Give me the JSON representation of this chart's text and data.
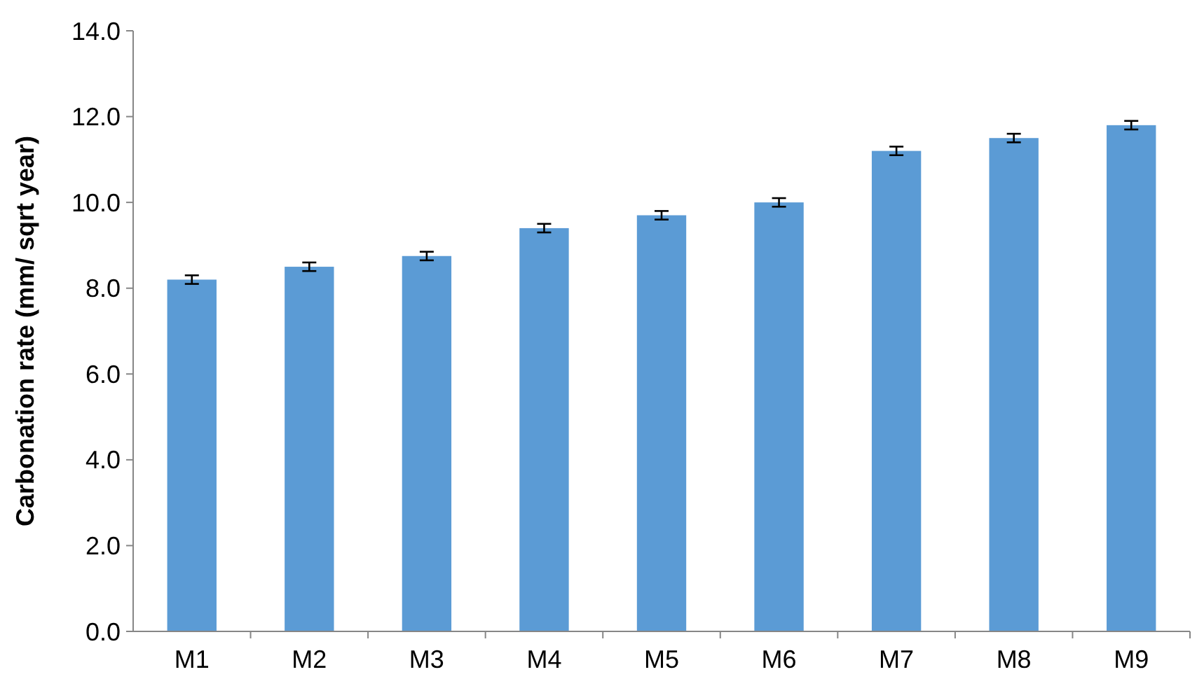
{
  "chart_data": {
    "type": "bar",
    "ylabel": "Carbonation rate (mm/ sqrt year)",
    "categories": [
      "M1",
      "M2",
      "M3",
      "M4",
      "M5",
      "M6",
      "M7",
      "M8",
      "M9"
    ],
    "values": [
      8.2,
      8.5,
      8.75,
      9.4,
      9.7,
      10.0,
      11.2,
      11.5,
      11.8
    ],
    "errors": [
      0.1,
      0.1,
      0.1,
      0.1,
      0.1,
      0.1,
      0.1,
      0.1,
      0.1
    ],
    "color": "#5b9bd5",
    "ylim": [
      0,
      14
    ],
    "yticks": [
      {
        "value": 0,
        "label": "0.0"
      },
      {
        "value": 2,
        "label": "2.0"
      },
      {
        "value": 4,
        "label": "4.0"
      },
      {
        "value": 6,
        "label": "6.0"
      },
      {
        "value": 8,
        "label": "8.0"
      },
      {
        "value": 10,
        "label": "10.0"
      },
      {
        "value": 12,
        "label": "12.0"
      },
      {
        "value": 14,
        "label": "14.0"
      }
    ]
  }
}
